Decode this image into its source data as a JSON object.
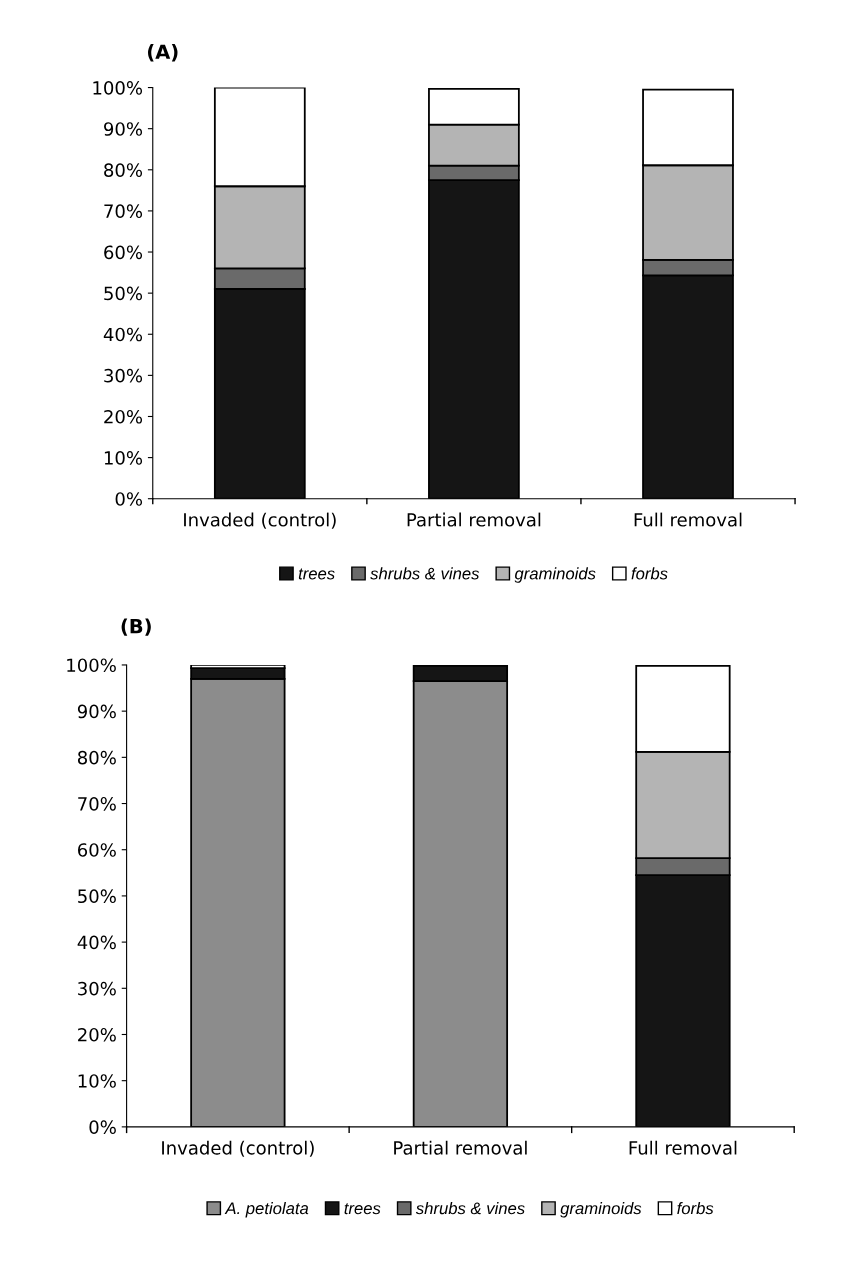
{
  "chart_data": [
    {
      "type": "bar",
      "title": "(A)",
      "stacked": true,
      "categories": [
        "Invaded (control)",
        "Partial removal",
        "Full removal"
      ],
      "series": [
        {
          "name": "trees",
          "color": "#151515",
          "values": [
            51,
            77.5,
            54.3
          ]
        },
        {
          "name": "shrubs & vines",
          "color": "#6a6a6a",
          "values": [
            5,
            3.5,
            3.8
          ]
        },
        {
          "name": "graminoids",
          "color": "#b4b4b4",
          "values": [
            20,
            10,
            23
          ]
        },
        {
          "name": "forbs",
          "color": "#ffffff",
          "values": [
            24,
            8.7,
            18.4
          ]
        }
      ],
      "ylim": [
        0,
        100
      ],
      "yticks": [
        {
          "value": 0,
          "label": "0%"
        },
        {
          "value": 10,
          "label": "10%"
        },
        {
          "value": 20,
          "label": "20%"
        },
        {
          "value": 30,
          "label": "30%"
        },
        {
          "value": 40,
          "label": "40%"
        },
        {
          "value": 50,
          "label": "50%"
        },
        {
          "value": 60,
          "label": "60%"
        },
        {
          "value": 70,
          "label": "70%"
        },
        {
          "value": 80,
          "label": "80%"
        },
        {
          "value": 90,
          "label": "90%"
        },
        {
          "value": 100,
          "label": "100%"
        }
      ],
      "legend": "bottom",
      "grid": false
    },
    {
      "type": "bar",
      "title": "(B)",
      "stacked": true,
      "categories": [
        "Invaded (control)",
        "Partial removal",
        "Full removal"
      ],
      "series": [
        {
          "name": "A. petiolata",
          "color": "#8c8c8c",
          "values": [
            97,
            96.5,
            null
          ]
        },
        {
          "name": "trees",
          "color": "#151515",
          "values": [
            2.3,
            3.3,
            54.5
          ]
        },
        {
          "name": "shrubs & vines",
          "color": "#6a6a6a",
          "values": [
            null,
            null,
            3.7
          ]
        },
        {
          "name": "graminoids",
          "color": "#b4b4b4",
          "values": [
            null,
            null,
            23
          ]
        },
        {
          "name": "forbs",
          "color": "#ffffff",
          "values": [
            0.7,
            null,
            18.6
          ]
        }
      ],
      "ylim": [
        0,
        100
      ],
      "yticks": [
        {
          "value": 0,
          "label": "0%"
        },
        {
          "value": 10,
          "label": "10%"
        },
        {
          "value": 20,
          "label": "20%"
        },
        {
          "value": 30,
          "label": "30%"
        },
        {
          "value": 40,
          "label": "40%"
        },
        {
          "value": 50,
          "label": "50%"
        },
        {
          "value": 60,
          "label": "60%"
        },
        {
          "value": 70,
          "label": "70%"
        },
        {
          "value": 80,
          "label": "80%"
        },
        {
          "value": 90,
          "label": "90%"
        },
        {
          "value": 100,
          "label": "100%"
        }
      ],
      "legend": "bottom",
      "grid": false
    }
  ]
}
